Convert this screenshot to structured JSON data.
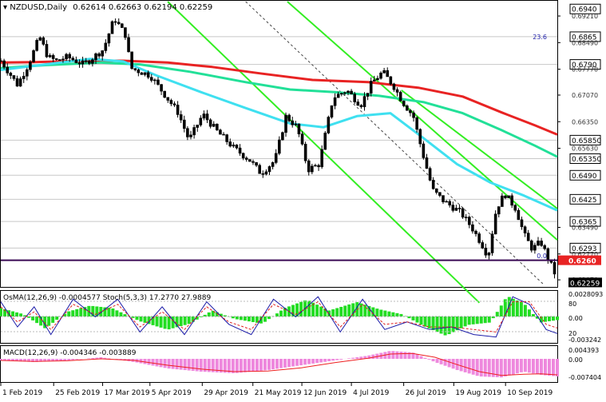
{
  "header": {
    "symbol_timeframe": "NZDUSD,Daily",
    "ohlc": "0.62614 0.62663 0.62194 0.62259"
  },
  "chart_data": [
    {
      "type": "candlestick",
      "panel": "main",
      "title": "NZDUSD,Daily",
      "ylim": [
        0.619,
        0.696
      ],
      "price_levels": [
        {
          "label": "0.6940",
          "value": 0.694,
          "boxed": true,
          "line": false
        },
        {
          "label": "0.69210",
          "value": 0.6921,
          "boxed": false,
          "line": false
        },
        {
          "label": "0.6865",
          "value": 0.6865,
          "boxed": true,
          "line": true
        },
        {
          "label": "0.68490",
          "value": 0.6849,
          "boxed": false,
          "line": false
        },
        {
          "label": "0.6790",
          "value": 0.679,
          "boxed": true,
          "line": true
        },
        {
          "label": "0.67770",
          "value": 0.6777,
          "boxed": false,
          "line": false
        },
        {
          "label": "0.67070",
          "value": 0.6707,
          "boxed": false,
          "line": false
        },
        {
          "label": "0.66350",
          "value": 0.6635,
          "boxed": false,
          "line": false
        },
        {
          "label": "0.65850",
          "value": 0.6585,
          "boxed": true,
          "line": true
        },
        {
          "label": "0.65630",
          "value": 0.6563,
          "boxed": false,
          "line": false
        },
        {
          "label": "0.65350",
          "value": 0.6535,
          "boxed": true,
          "line": true
        },
        {
          "label": "0.6490",
          "value": 0.649,
          "boxed": true,
          "line": true
        },
        {
          "label": "0.6425",
          "value": 0.6425,
          "boxed": true,
          "line": true
        },
        {
          "label": "0.6365",
          "value": 0.6365,
          "boxed": true,
          "line": true
        },
        {
          "label": "0.63490",
          "value": 0.6349,
          "boxed": false,
          "line": false
        },
        {
          "label": "0.6293",
          "value": 0.6293,
          "boxed": true,
          "line": true
        },
        {
          "label": "0.62770",
          "value": 0.6277,
          "boxed": false,
          "line": false
        },
        {
          "label": "0.62070",
          "value": 0.6207,
          "boxed": false,
          "line": false
        }
      ],
      "current_level": {
        "label": "0.6260",
        "value": 0.626,
        "color": "#3a0a55"
      },
      "last_price": {
        "label": "0.62259",
        "value": 0.62259
      },
      "fib_labels": [
        {
          "label": "23.6",
          "value": 0.6865
        },
        {
          "label": "0.0",
          "value": 0.6272
        }
      ],
      "moving_averages": [
        {
          "color": "#e82323",
          "width": 3,
          "x": [
            0,
            0.06,
            0.15,
            0.22,
            0.3,
            0.38,
            0.47,
            0.56,
            0.66,
            0.75,
            0.83,
            0.9,
            0.96,
            1.0
          ],
          "values": [
            0.6795,
            0.6796,
            0.68,
            0.68,
            0.6795,
            0.6783,
            0.6765,
            0.6748,
            0.6742,
            0.6727,
            0.6703,
            0.666,
            0.6625,
            0.66
          ]
        },
        {
          "color": "#22e098",
          "width": 3,
          "x": [
            0,
            0.08,
            0.18,
            0.25,
            0.34,
            0.44,
            0.52,
            0.6,
            0.68,
            0.76,
            0.83,
            0.9,
            0.96,
            1.0
          ],
          "values": [
            0.678,
            0.6788,
            0.6795,
            0.679,
            0.677,
            0.6742,
            0.6722,
            0.6715,
            0.6705,
            0.6688,
            0.6658,
            0.6612,
            0.657,
            0.654
          ]
        },
        {
          "color": "#3fe0f0",
          "width": 3,
          "x": [
            0,
            0.08,
            0.16,
            0.22,
            0.28,
            0.36,
            0.44,
            0.52,
            0.58,
            0.64,
            0.7,
            0.76,
            0.82,
            0.88,
            0.94,
            1.0
          ],
          "values": [
            0.6775,
            0.679,
            0.6805,
            0.6798,
            0.676,
            0.6715,
            0.6672,
            0.663,
            0.662,
            0.665,
            0.6658,
            0.659,
            0.652,
            0.647,
            0.6435,
            0.6395
          ]
        }
      ],
      "channels": [
        {
          "color": "#33ee22",
          "width": 2,
          "from": [
            0.3,
            0.696
          ],
          "to": [
            0.86,
            0.6145
          ]
        },
        {
          "color": "#33ee22",
          "width": 2,
          "from": [
            0.515,
            0.696
          ],
          "to": [
            1.0,
            0.6315
          ]
        },
        {
          "color": "#33ee22",
          "width": 2,
          "from": [
            0.72,
            0.672
          ],
          "to": [
            1.0,
            0.64
          ]
        },
        {
          "color": "#444444",
          "width": 1,
          "dashed": true,
          "from": [
            0.44,
            0.696
          ],
          "to": [
            0.975,
            0.6195
          ]
        }
      ],
      "candle_path": [
        [
          0.0,
          0.68
        ],
        [
          0.03,
          0.6735
        ],
        [
          0.05,
          0.679
        ],
        [
          0.07,
          0.6865
        ],
        [
          0.085,
          0.681
        ],
        [
          0.1,
          0.68
        ],
        [
          0.12,
          0.681
        ],
        [
          0.15,
          0.679
        ],
        [
          0.185,
          0.683
        ],
        [
          0.205,
          0.6915
        ],
        [
          0.225,
          0.687
        ],
        [
          0.235,
          0.678
        ],
        [
          0.27,
          0.676
        ],
        [
          0.3,
          0.67
        ],
        [
          0.32,
          0.666
        ],
        [
          0.34,
          0.6585
        ],
        [
          0.365,
          0.6655
        ],
        [
          0.39,
          0.661
        ],
        [
          0.42,
          0.6565
        ],
        [
          0.45,
          0.653
        ],
        [
          0.47,
          0.6495
        ],
        [
          0.495,
          0.653
        ],
        [
          0.515,
          0.665
        ],
        [
          0.535,
          0.662
        ],
        [
          0.555,
          0.6505
        ],
        [
          0.575,
          0.652
        ],
        [
          0.6,
          0.67
        ],
        [
          0.625,
          0.672
        ],
        [
          0.65,
          0.668
        ],
        [
          0.67,
          0.674
        ],
        [
          0.69,
          0.677
        ],
        [
          0.71,
          0.673
        ],
        [
          0.725,
          0.669
        ],
        [
          0.745,
          0.665
        ],
        [
          0.76,
          0.656
        ],
        [
          0.78,
          0.645
        ],
        [
          0.8,
          0.642
        ],
        [
          0.83,
          0.639
        ],
        [
          0.85,
          0.635
        ],
        [
          0.87,
          0.63
        ],
        [
          0.88,
          0.627
        ],
        [
          0.895,
          0.64
        ],
        [
          0.91,
          0.644
        ],
        [
          0.93,
          0.64
        ],
        [
          0.945,
          0.633
        ],
        [
          0.96,
          0.629
        ],
        [
          0.975,
          0.631
        ],
        [
          0.99,
          0.626
        ],
        [
          1.0,
          0.6226
        ]
      ]
    },
    {
      "type": "histogram",
      "panel": "osma_stoch",
      "title": "OsMA(12,26,9) -0.0004577 Stoch(5,3,3) 17.2770 27.9889",
      "labels_right": [
        "0.0028093",
        "80",
        "0.00",
        "20",
        "-0.003242"
      ],
      "hist_color": "#22dd22",
      "hist_path": [
        [
          0.0,
          0.35
        ],
        [
          0.04,
          0.1
        ],
        [
          0.08,
          -0.5
        ],
        [
          0.12,
          0.2
        ],
        [
          0.16,
          0.45
        ],
        [
          0.2,
          0.35
        ],
        [
          0.25,
          -0.2
        ],
        [
          0.3,
          -0.55
        ],
        [
          0.34,
          -0.3
        ],
        [
          0.38,
          0.25
        ],
        [
          0.42,
          -0.1
        ],
        [
          0.47,
          -0.3
        ],
        [
          0.51,
          0.35
        ],
        [
          0.55,
          0.7
        ],
        [
          0.59,
          0.25
        ],
        [
          0.64,
          0.6
        ],
        [
          0.68,
          0.3
        ],
        [
          0.72,
          0.1
        ],
        [
          0.76,
          -0.4
        ],
        [
          0.8,
          -0.8
        ],
        [
          0.84,
          -0.35
        ],
        [
          0.88,
          -0.25
        ],
        [
          0.91,
          0.85
        ],
        [
          0.94,
          0.55
        ],
        [
          0.97,
          -0.25
        ],
        [
          1.0,
          -0.15
        ]
      ],
      "stoch_main": {
        "color": "#1a1aa8",
        "path": [
          [
            0.0,
            0.8
          ],
          [
            0.03,
            0.3
          ],
          [
            0.06,
            0.7
          ],
          [
            0.09,
            0.15
          ],
          [
            0.13,
            0.85
          ],
          [
            0.17,
            0.5
          ],
          [
            0.21,
            0.85
          ],
          [
            0.25,
            0.2
          ],
          [
            0.29,
            0.7
          ],
          [
            0.33,
            0.15
          ],
          [
            0.37,
            0.8
          ],
          [
            0.41,
            0.35
          ],
          [
            0.45,
            0.15
          ],
          [
            0.49,
            0.85
          ],
          [
            0.53,
            0.5
          ],
          [
            0.57,
            0.9
          ],
          [
            0.61,
            0.2
          ],
          [
            0.65,
            0.85
          ],
          [
            0.69,
            0.25
          ],
          [
            0.73,
            0.4
          ],
          [
            0.77,
            0.25
          ],
          [
            0.81,
            0.3
          ],
          [
            0.85,
            0.15
          ],
          [
            0.89,
            0.1
          ],
          [
            0.92,
            0.9
          ],
          [
            0.95,
            0.75
          ],
          [
            0.98,
            0.25
          ],
          [
            1.0,
            0.17
          ]
        ]
      },
      "stoch_signal": {
        "color": "#e02020",
        "dashed": true,
        "path": [
          [
            0.0,
            0.7
          ],
          [
            0.03,
            0.4
          ],
          [
            0.06,
            0.6
          ],
          [
            0.09,
            0.25
          ],
          [
            0.13,
            0.75
          ],
          [
            0.17,
            0.55
          ],
          [
            0.21,
            0.75
          ],
          [
            0.25,
            0.3
          ],
          [
            0.29,
            0.6
          ],
          [
            0.33,
            0.25
          ],
          [
            0.37,
            0.7
          ],
          [
            0.41,
            0.4
          ],
          [
            0.45,
            0.25
          ],
          [
            0.49,
            0.75
          ],
          [
            0.53,
            0.55
          ],
          [
            0.57,
            0.8
          ],
          [
            0.61,
            0.3
          ],
          [
            0.65,
            0.75
          ],
          [
            0.69,
            0.35
          ],
          [
            0.73,
            0.4
          ],
          [
            0.77,
            0.3
          ],
          [
            0.81,
            0.3
          ],
          [
            0.85,
            0.25
          ],
          [
            0.89,
            0.2
          ],
          [
            0.92,
            0.8
          ],
          [
            0.95,
            0.8
          ],
          [
            0.98,
            0.35
          ],
          [
            1.0,
            0.28
          ]
        ]
      }
    },
    {
      "type": "histogram",
      "panel": "macd",
      "title": "MACD(12,26,9) -0.004346 -0.003889",
      "labels_right": [
        "0.004393",
        "0.00",
        "-0.007404"
      ],
      "hist_color": "#ee88dd",
      "hist_path": [
        [
          0.0,
          -0.05
        ],
        [
          0.06,
          -0.1
        ],
        [
          0.12,
          -0.05
        ],
        [
          0.18,
          0.05
        ],
        [
          0.24,
          -0.1
        ],
        [
          0.3,
          -0.3
        ],
        [
          0.36,
          -0.4
        ],
        [
          0.42,
          -0.45
        ],
        [
          0.48,
          -0.35
        ],
        [
          0.54,
          -0.2
        ],
        [
          0.6,
          -0.05
        ],
        [
          0.66,
          0.1
        ],
        [
          0.7,
          0.25
        ],
        [
          0.74,
          0.2
        ],
        [
          0.78,
          -0.1
        ],
        [
          0.82,
          -0.35
        ],
        [
          0.86,
          -0.55
        ],
        [
          0.9,
          -0.58
        ],
        [
          0.94,
          -0.4
        ],
        [
          0.97,
          -0.5
        ],
        [
          1.0,
          -0.55
        ]
      ],
      "signal_line": {
        "color": "#ee2020",
        "path": [
          [
            0.0,
            -0.05
          ],
          [
            0.06,
            -0.08
          ],
          [
            0.12,
            -0.06
          ],
          [
            0.18,
            0.0
          ],
          [
            0.24,
            -0.05
          ],
          [
            0.3,
            -0.2
          ],
          [
            0.36,
            -0.32
          ],
          [
            0.42,
            -0.4
          ],
          [
            0.48,
            -0.38
          ],
          [
            0.54,
            -0.28
          ],
          [
            0.6,
            -0.12
          ],
          [
            0.66,
            0.02
          ],
          [
            0.7,
            0.15
          ],
          [
            0.74,
            0.17
          ],
          [
            0.78,
            0.05
          ],
          [
            0.82,
            -0.18
          ],
          [
            0.86,
            -0.4
          ],
          [
            0.9,
            -0.52
          ],
          [
            0.94,
            -0.48
          ],
          [
            0.97,
            -0.47
          ],
          [
            1.0,
            -0.5
          ]
        ]
      }
    }
  ],
  "x_axis": {
    "labels": [
      "1 Feb 2019",
      "25 Feb 2019",
      "17 Mar 2019",
      "5 Apr 2019",
      "29 Apr 2019",
      "21 May 2019",
      "12 Jun 2019",
      "4 Jul 2019",
      "26 Jul 2019",
      "19 Aug 2019",
      "10 Sep 2019"
    ],
    "positions": [
      0.0,
      0.095,
      0.183,
      0.268,
      0.362,
      0.453,
      0.541,
      0.63,
      0.724,
      0.814,
      0.907
    ]
  },
  "colors": {
    "background": "#ffffff",
    "bull_candle": "#000000",
    "bear_candle": "#000000",
    "boxed_label_bg": "#ffffff",
    "current_label_bg": "#e82323"
  }
}
